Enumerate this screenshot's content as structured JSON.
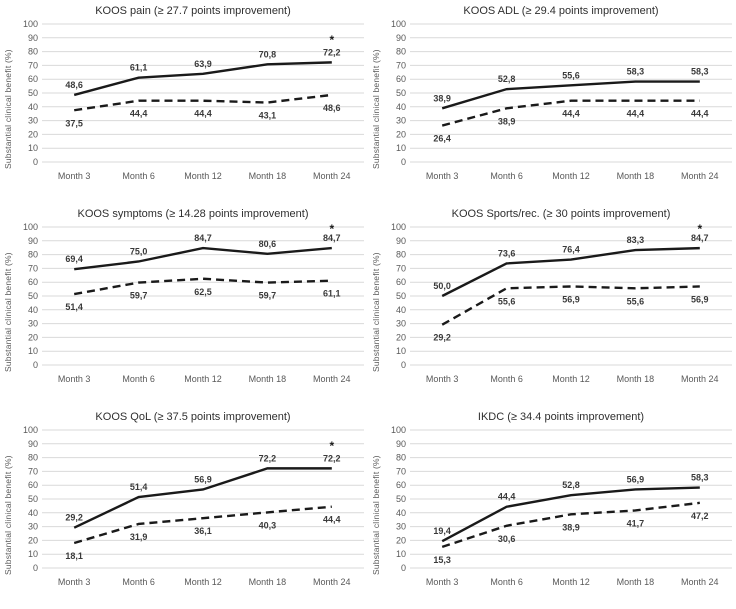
{
  "figure": {
    "ylabel": "Substantial clinical benefit (%)",
    "x_categories": [
      "Month 3",
      "Month 6",
      "Month 12",
      "Month 18",
      "Month 24"
    ],
    "significance_marker": "*",
    "colors": {
      "line": "#1a1a1a",
      "gridline": "#d9d9d9",
      "tick_text": "#595959",
      "data_label": "#3a3a3a"
    }
  },
  "chart_data": [
    {
      "type": "line",
      "title": "KOOS pain (≥ 27.7 points improvement)",
      "ylabel": "Substantial clinical benefit (%)",
      "categories": [
        "Month 3",
        "Month 6",
        "Month 12",
        "Month 18",
        "Month 24"
      ],
      "ylim": [
        0,
        100
      ],
      "ytick_step": 10,
      "grid": "horizontal",
      "legend": "none",
      "decimal_separator": ",",
      "series": [
        {
          "name": "solid",
          "line_style": "solid",
          "values": [
            48.6,
            61.1,
            63.9,
            70.8,
            72.2
          ]
        },
        {
          "name": "dashed",
          "line_style": "dashed",
          "values": [
            37.5,
            44.4,
            44.4,
            43.1,
            48.6
          ]
        }
      ],
      "annotation": {
        "text": "*",
        "category": "Month 24",
        "y": 90
      }
    },
    {
      "type": "line",
      "title": "KOOS ADL (≥ 29.4 points improvement)",
      "ylabel": "Substantial clinical benefit (%)",
      "categories": [
        "Month 3",
        "Month 6",
        "Month 12",
        "Month 18",
        "Month 24"
      ],
      "ylim": [
        0,
        100
      ],
      "ytick_step": 10,
      "grid": "horizontal",
      "legend": "none",
      "decimal_separator": ",",
      "series": [
        {
          "name": "solid",
          "line_style": "solid",
          "values": [
            38.9,
            52.8,
            55.6,
            58.3,
            58.3
          ]
        },
        {
          "name": "dashed",
          "line_style": "dashed",
          "values": [
            26.4,
            38.9,
            44.4,
            44.4,
            44.4
          ]
        }
      ],
      "annotation": null
    },
    {
      "type": "line",
      "title": "KOOS symptoms (≥ 14.28 points improvement)",
      "ylabel": "Substantial clinical benefit (%)",
      "categories": [
        "Month 3",
        "Month 6",
        "Month 12",
        "Month 18",
        "Month 24"
      ],
      "ylim": [
        0,
        100
      ],
      "ytick_step": 10,
      "grid": "horizontal",
      "legend": "none",
      "decimal_separator": ",",
      "series": [
        {
          "name": "solid",
          "line_style": "solid",
          "values": [
            69.4,
            75.0,
            84.7,
            80.6,
            84.7
          ]
        },
        {
          "name": "dashed",
          "line_style": "dashed",
          "values": [
            51.4,
            59.7,
            62.5,
            59.7,
            61.1
          ]
        }
      ],
      "annotation": {
        "text": "*",
        "category": "Month 24",
        "y": 100
      }
    },
    {
      "type": "line",
      "title": "KOOS Sports/rec. (≥ 30 points improvement)",
      "ylabel": "Substantial clinical benefit (%)",
      "categories": [
        "Month 3",
        "Month 6",
        "Month 12",
        "Month 18",
        "Month 24"
      ],
      "ylim": [
        0,
        100
      ],
      "ytick_step": 10,
      "grid": "horizontal",
      "legend": "none",
      "decimal_separator": ",",
      "series": [
        {
          "name": "solid",
          "line_style": "solid",
          "values": [
            50.0,
            73.6,
            76.4,
            83.3,
            84.7
          ]
        },
        {
          "name": "dashed",
          "line_style": "dashed",
          "values": [
            29.2,
            55.6,
            56.9,
            55.6,
            56.9
          ]
        }
      ],
      "annotation": {
        "text": "*",
        "category": "Month 24",
        "y": 100
      }
    },
    {
      "type": "line",
      "title": "KOOS QoL (≥ 37.5 points improvement)",
      "ylabel": "Substantial clinical benefit (%)",
      "categories": [
        "Month 3",
        "Month 6",
        "Month 12",
        "Month 18",
        "Month 24"
      ],
      "ylim": [
        0,
        100
      ],
      "ytick_step": 10,
      "grid": "horizontal",
      "legend": "none",
      "decimal_separator": ",",
      "series": [
        {
          "name": "solid",
          "line_style": "solid",
          "values": [
            29.2,
            51.4,
            56.9,
            72.2,
            72.2
          ]
        },
        {
          "name": "dashed",
          "line_style": "dashed",
          "values": [
            18.1,
            31.9,
            36.1,
            40.3,
            44.4
          ]
        }
      ],
      "annotation": {
        "text": "*",
        "category": "Month 24",
        "y": 90
      }
    },
    {
      "type": "line",
      "title": "IKDC (≥ 34.4 points improvement)",
      "ylabel": "Substantial clinical benefit (%)",
      "categories": [
        "Month 3",
        "Month 6",
        "Month 12",
        "Month 18",
        "Month 24"
      ],
      "ylim": [
        0,
        100
      ],
      "ytick_step": 10,
      "grid": "horizontal",
      "legend": "none",
      "decimal_separator": ",",
      "series": [
        {
          "name": "solid",
          "line_style": "solid",
          "values": [
            19.4,
            44.4,
            52.8,
            56.9,
            58.3
          ]
        },
        {
          "name": "dashed",
          "line_style": "dashed",
          "values": [
            15.3,
            30.6,
            38.9,
            41.7,
            47.2
          ]
        }
      ],
      "annotation": null
    }
  ]
}
